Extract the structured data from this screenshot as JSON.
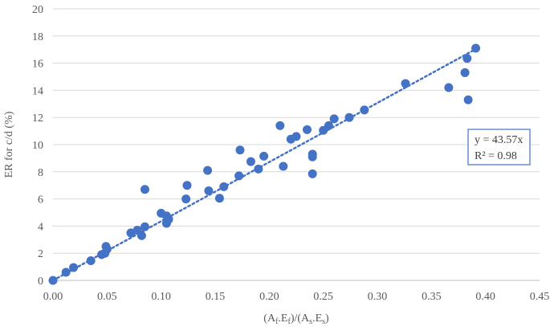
{
  "chart_data": {
    "type": "scatter",
    "xlabel": "(Af.Ef)/(As.Es)",
    "xlabel_parts": {
      "o1": "(A",
      "s1": "f",
      "m1": ".E",
      "s2": "f",
      "m2": ")/(A",
      "s3": "s",
      "m3": ".E",
      "s4": "s",
      "c": ")"
    },
    "ylabel": "ER for c/d (%)",
    "xlim": [
      0,
      0.45
    ],
    "ylim": [
      0,
      20
    ],
    "xticks": [
      "0.00",
      "0.05",
      "0.10",
      "0.15",
      "0.20",
      "0.25",
      "0.30",
      "0.35",
      "0.40",
      "0.45"
    ],
    "yticks": [
      "0",
      "2",
      "4",
      "6",
      "8",
      "10",
      "12",
      "14",
      "16",
      "18",
      "20"
    ],
    "grid": "horizontal",
    "marker_color": "#4472C4",
    "trendline": {
      "type": "linear-through-origin",
      "slope": 43.57,
      "x_range": [
        0,
        0.39
      ],
      "equation": "y = 43.57x",
      "r2": "R² = 0.98"
    },
    "points": [
      {
        "x": 0.0,
        "y": 0.0
      },
      {
        "x": 0.012,
        "y": 0.6
      },
      {
        "x": 0.019,
        "y": 0.95
      },
      {
        "x": 0.035,
        "y": 1.45
      },
      {
        "x": 0.045,
        "y": 1.9
      },
      {
        "x": 0.048,
        "y": 2.0
      },
      {
        "x": 0.049,
        "y": 2.5
      },
      {
        "x": 0.05,
        "y": 2.3
      },
      {
        "x": 0.072,
        "y": 3.5
      },
      {
        "x": 0.078,
        "y": 3.7
      },
      {
        "x": 0.082,
        "y": 3.3
      },
      {
        "x": 0.085,
        "y": 3.95
      },
      {
        "x": 0.085,
        "y": 6.7
      },
      {
        "x": 0.1,
        "y": 4.95
      },
      {
        "x": 0.105,
        "y": 4.2
      },
      {
        "x": 0.105,
        "y": 4.75
      },
      {
        "x": 0.107,
        "y": 4.5
      },
      {
        "x": 0.123,
        "y": 6.0
      },
      {
        "x": 0.124,
        "y": 7.0
      },
      {
        "x": 0.143,
        "y": 8.1
      },
      {
        "x": 0.144,
        "y": 6.6
      },
      {
        "x": 0.154,
        "y": 6.05
      },
      {
        "x": 0.158,
        "y": 6.9
      },
      {
        "x": 0.172,
        "y": 7.7
      },
      {
        "x": 0.173,
        "y": 9.6
      },
      {
        "x": 0.183,
        "y": 8.75
      },
      {
        "x": 0.19,
        "y": 8.2
      },
      {
        "x": 0.195,
        "y": 9.15
      },
      {
        "x": 0.21,
        "y": 11.4
      },
      {
        "x": 0.213,
        "y": 8.4
      },
      {
        "x": 0.22,
        "y": 10.4
      },
      {
        "x": 0.225,
        "y": 10.6
      },
      {
        "x": 0.235,
        "y": 11.1
      },
      {
        "x": 0.24,
        "y": 9.3
      },
      {
        "x": 0.24,
        "y": 9.1
      },
      {
        "x": 0.24,
        "y": 7.85
      },
      {
        "x": 0.25,
        "y": 11.05
      },
      {
        "x": 0.255,
        "y": 11.4
      },
      {
        "x": 0.26,
        "y": 11.9
      },
      {
        "x": 0.274,
        "y": 12.0
      },
      {
        "x": 0.288,
        "y": 12.55
      },
      {
        "x": 0.326,
        "y": 14.5
      },
      {
        "x": 0.366,
        "y": 14.2
      },
      {
        "x": 0.381,
        "y": 15.3
      },
      {
        "x": 0.383,
        "y": 16.35
      },
      {
        "x": 0.384,
        "y": 13.3
      },
      {
        "x": 0.391,
        "y": 17.1
      }
    ]
  }
}
